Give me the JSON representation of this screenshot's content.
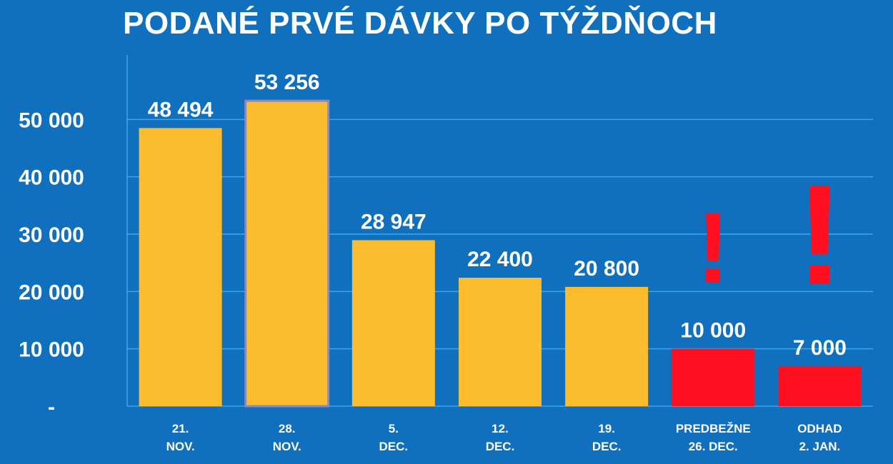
{
  "chart_data": {
    "type": "bar",
    "title": "PODANÉ PRVÉ DÁVKY PO TÝŽDŇOCH",
    "categories": [
      [
        "21.",
        "NOV."
      ],
      [
        "28.",
        "NOV."
      ],
      [
        "5.",
        "DEC."
      ],
      [
        "12.",
        "DEC."
      ],
      [
        "19.",
        "DEC."
      ],
      [
        "PREDBEŽNE",
        "26. DEC."
      ],
      [
        "ODHAD",
        "2. JAN."
      ]
    ],
    "values": [
      48494,
      53256,
      28947,
      22400,
      20800,
      10000,
      7000
    ],
    "value_labels": [
      "48 494",
      "53 256",
      "28 947",
      "22 400",
      "20 800",
      "10 000",
      "7 000"
    ],
    "bar_colors": [
      "#fbbd2d",
      "#fbbd2d",
      "#fbbd2d",
      "#fbbd2d",
      "#fbbd2d",
      "#ff1020",
      "#ff1020"
    ],
    "highlight_border_color": "#8a8ab8",
    "highlight_index": 1,
    "warning_indices": [
      5,
      6
    ],
    "warning_mark": "!",
    "warning_color": "#ff1020",
    "ylim": [
      0,
      60000
    ],
    "yticks": [
      0,
      10000,
      20000,
      30000,
      40000,
      50000
    ],
    "ytick_labels": [
      "-",
      "10 000",
      "20 000",
      "30 000",
      "40 000",
      "50 000"
    ],
    "grid": true,
    "grid_color": "#3aa8e8",
    "xlabel": "",
    "ylabel": ""
  }
}
